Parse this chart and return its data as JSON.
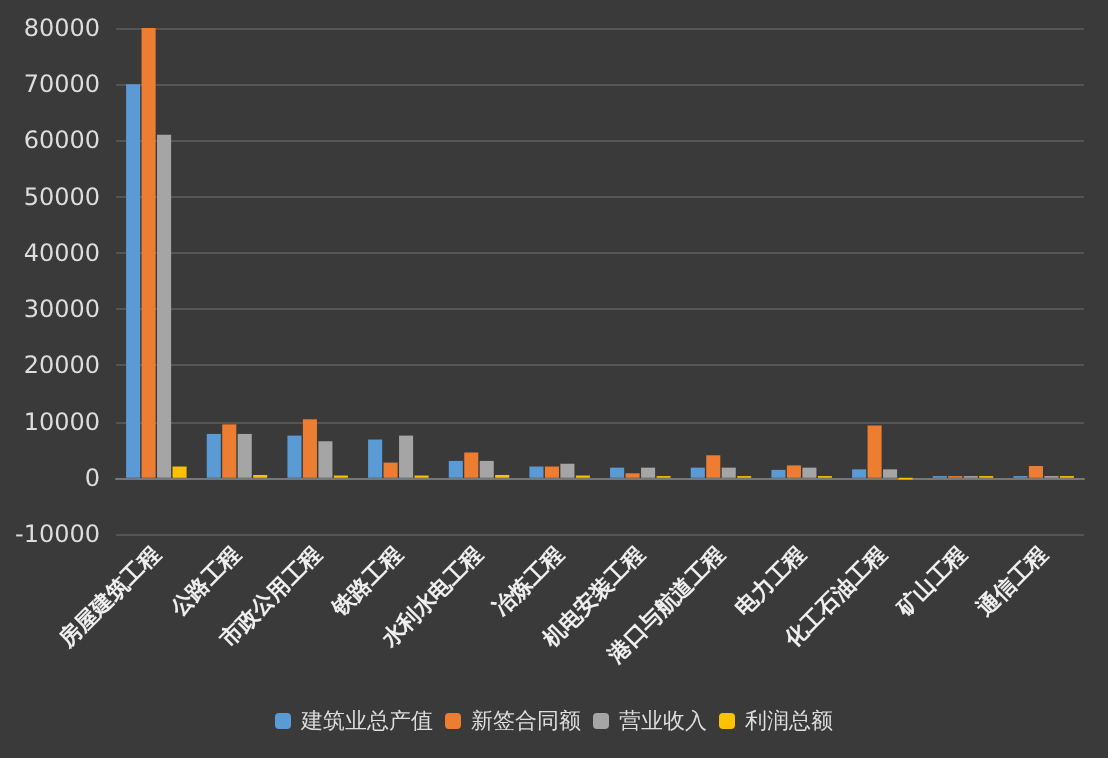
{
  "chart_data": {
    "type": "bar",
    "categories": [
      "房屋建筑工程",
      "公路工程",
      "市政公用工程",
      "铁路工程",
      "水利水电工程",
      "冶炼工程",
      "机电安装工程",
      "港口与航道工程",
      "电力工程",
      "化工石油工程",
      "矿山工程",
      "通信工程"
    ],
    "series": [
      {
        "name": "建筑业总产值",
        "color": "#5b9bd5",
        "values": [
          70000,
          7800,
          7500,
          6800,
          3000,
          2000,
          1800,
          1800,
          1400,
          1500,
          300,
          300
        ]
      },
      {
        "name": "新签合同额",
        "color": "#ed7d31",
        "values": [
          80000,
          9500,
          10400,
          2700,
          4500,
          2000,
          800,
          4000,
          2200,
          9300,
          300,
          2100
        ]
      },
      {
        "name": "营业收入",
        "color": "#a5a5a5",
        "values": [
          61000,
          7800,
          6500,
          7500,
          3000,
          2500,
          1800,
          1800,
          1800,
          1500,
          300,
          300
        ]
      },
      {
        "name": "利润总额",
        "color": "#ffc000",
        "values": [
          2000,
          500,
          400,
          400,
          500,
          400,
          300,
          300,
          300,
          -300,
          300,
          300
        ]
      }
    ],
    "ylim": [
      -10000,
      80000
    ],
    "yticks": [
      -10000,
      0,
      10000,
      20000,
      30000,
      40000,
      50000,
      60000,
      70000,
      80000
    ],
    "grid": "y",
    "legend": "bottom"
  }
}
